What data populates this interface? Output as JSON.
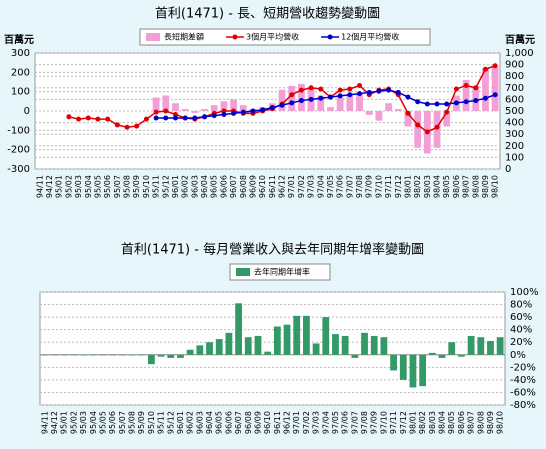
{
  "chart_data": [
    {
      "type": "bar",
      "title": "首利(1471) - 長、短期營收趨勢變動圖",
      "y_label": "百萬元",
      "y2_label": "百萬元",
      "categories": [
        "94/11",
        "94/12",
        "95/01",
        "95/02",
        "95/03",
        "95/04",
        "95/05",
        "95/06",
        "95/07",
        "95/08",
        "95/09",
        "95/10",
        "95/11",
        "95/12",
        "96/01",
        "96/02",
        "96/03",
        "96/04",
        "96/05",
        "96/06",
        "96/07",
        "96/08",
        "96/09",
        "96/10",
        "96/11",
        "96/12",
        "97/01",
        "97/02",
        "97/03",
        "97/04",
        "97/05",
        "97/06",
        "97/07",
        "97/08",
        "97/09",
        "97/10",
        "97/11",
        "97/12",
        "98/01",
        "98/02",
        "98/03",
        "98/04",
        "98/05",
        "98/06",
        "98/07",
        "98/08",
        "98/09",
        "98/10"
      ],
      "series": [
        {
          "name": "長短期差額",
          "type": "bar",
          "axis": "y",
          "color": "#f29fd6",
          "values": [
            null,
            null,
            null,
            null,
            null,
            null,
            null,
            null,
            null,
            null,
            null,
            null,
            70,
            80,
            40,
            10,
            -10,
            10,
            30,
            50,
            60,
            30,
            10,
            20,
            40,
            110,
            130,
            140,
            120,
            80,
            20,
            70,
            80,
            90,
            -20,
            -50,
            40,
            10,
            -80,
            -190,
            -220,
            -190,
            -80,
            80,
            160,
            130,
            220,
            230
          ]
        },
        {
          "name": "3個月平均營收",
          "type": "line",
          "axis": "y2",
          "color": "#e00000",
          "values": [
            null,
            null,
            null,
            450,
            430,
            440,
            430,
            430,
            380,
            360,
            370,
            430,
            490,
            500,
            470,
            440,
            430,
            450,
            480,
            500,
            500,
            480,
            480,
            500,
            520,
            560,
            640,
            680,
            700,
            690,
            620,
            680,
            690,
            720,
            640,
            680,
            690,
            640,
            480,
            380,
            320,
            360,
            490,
            690,
            720,
            700,
            860,
            890
          ]
        },
        {
          "name": "12個月平均營收",
          "type": "line",
          "axis": "y2",
          "color": "#0000cc",
          "values": [
            null,
            null,
            null,
            null,
            null,
            null,
            null,
            null,
            null,
            null,
            null,
            null,
            440,
            440,
            440,
            440,
            440,
            450,
            460,
            470,
            480,
            490,
            500,
            510,
            530,
            550,
            570,
            590,
            600,
            610,
            620,
            630,
            640,
            650,
            660,
            670,
            680,
            660,
            620,
            580,
            560,
            560,
            560,
            570,
            580,
            590,
            610,
            640
          ]
        }
      ],
      "ylim": [
        -300,
        300
      ],
      "yticks": [
        300,
        200,
        100,
        0,
        -100,
        -200,
        -300
      ],
      "y2lim": [
        0,
        1000
      ],
      "y2ticks": [
        {
          "value": 1000,
          "label": "1,000"
        },
        900,
        800,
        700,
        600,
        500,
        400,
        300,
        200,
        100,
        0
      ],
      "grid": true
    },
    {
      "type": "bar",
      "title": "首利(1471) - 每月營業收入與去年同期年增率變動圖",
      "categories": [
        "94/11",
        "94/12",
        "95/01",
        "95/02",
        "95/03",
        "95/04",
        "95/05",
        "95/06",
        "95/07",
        "95/08",
        "95/09",
        "95/10",
        "95/11",
        "95/12",
        "96/01",
        "96/02",
        "96/03",
        "96/04",
        "96/05",
        "96/06",
        "96/07",
        "96/08",
        "96/09",
        "96/10",
        "96/11",
        "96/12",
        "97/01",
        "97/02",
        "97/03",
        "97/04",
        "97/05",
        "97/06",
        "97/07",
        "97/08",
        "97/09",
        "97/10",
        "97/11",
        "97/12",
        "98/01",
        "98/02",
        "98/03",
        "98/04",
        "98/05",
        "98/06",
        "98/07",
        "98/08",
        "98/09",
        "98/10"
      ],
      "series": [
        {
          "name": "去年同期年增率",
          "type": "bar",
          "axis": "y2",
          "color": "#339966",
          "values": [
            0,
            0,
            0,
            0,
            0,
            0,
            0,
            0,
            0,
            0,
            0,
            -15,
            -3,
            -5,
            -5,
            8,
            15,
            20,
            25,
            35,
            82,
            28,
            30,
            5,
            45,
            48,
            62,
            62,
            18,
            60,
            33,
            30,
            -5,
            35,
            30,
            28,
            -25,
            -40,
            -52,
            -50,
            3,
            -5,
            20,
            -3,
            30,
            28,
            22,
            28
          ]
        }
      ],
      "y2lim": [
        -80,
        100
      ],
      "y2ticks": [
        {
          "value": 100,
          "label": "100%"
        },
        {
          "value": 80,
          "label": "80%"
        },
        {
          "value": 60,
          "label": "60%"
        },
        {
          "value": 40,
          "label": "40%"
        },
        {
          "value": 20,
          "label": "20%"
        },
        {
          "value": 0,
          "label": "0%"
        },
        {
          "value": -20,
          "label": "-20%"
        },
        {
          "value": -40,
          "label": "-40%"
        },
        {
          "value": -60,
          "label": "-60%"
        },
        {
          "value": -80,
          "label": "-80%"
        }
      ],
      "grid": true
    }
  ]
}
